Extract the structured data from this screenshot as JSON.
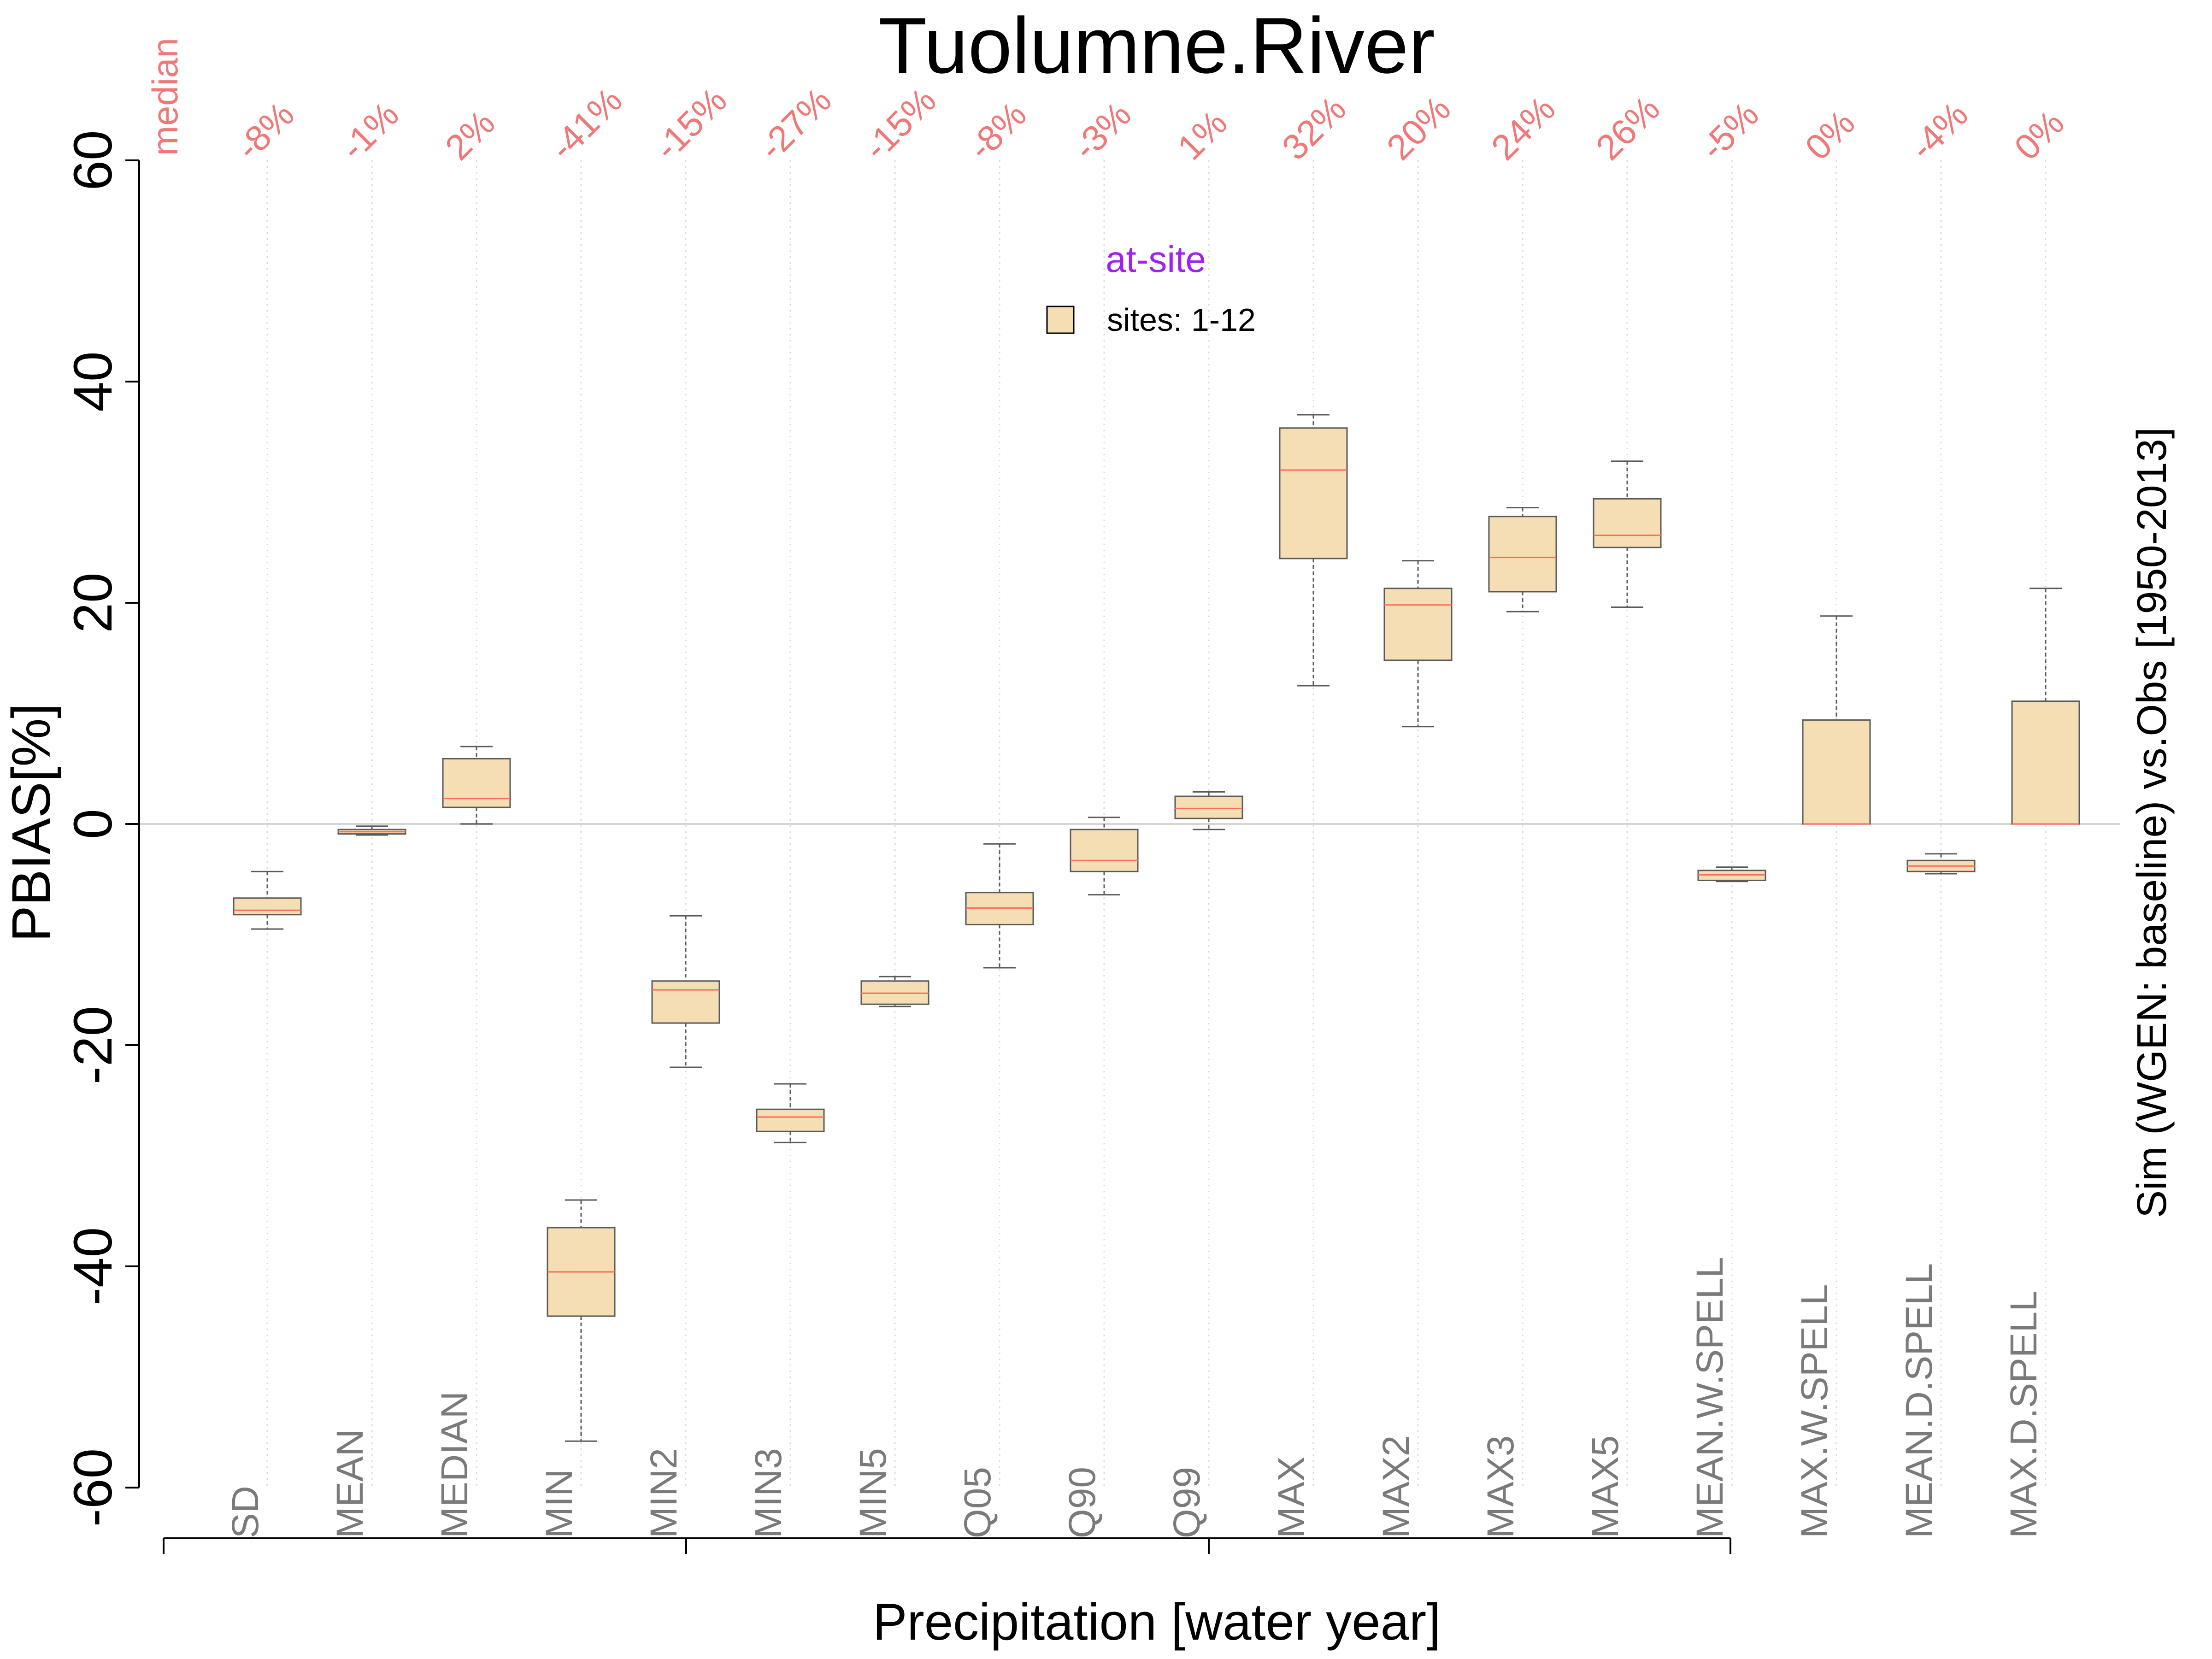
{
  "chart_data": {
    "type": "box",
    "title": "Tuolumne.River",
    "xlabel": "Precipitation [water year]",
    "ylabel": "PBIAS[%]",
    "right_label": "Sim (WGEN: baseline) vs.Obs [1950-2013]",
    "median_label": "median",
    "ylim": [
      -60,
      60
    ],
    "yticks": [
      "-60",
      "-40",
      "-20",
      "0",
      "20",
      "40",
      "60"
    ],
    "grid": "vertical dotted",
    "legend": {
      "title": "at-site",
      "entries": [
        "sites: 1-12"
      ],
      "placement": "top-center"
    },
    "categories": [
      "SD",
      "MEAN",
      "MEDIAN",
      "MIN",
      "MIN2",
      "MIN3",
      "MIN5",
      "Q05",
      "Q90",
      "Q99",
      "MAX",
      "MAX2",
      "MAX3",
      "MAX5",
      "MEAN.W.SPELL",
      "MAX.W.SPELL",
      "MEAN.D.SPELL",
      "MAX.D.SPELL"
    ],
    "median_labels": [
      "-8%",
      "-1%",
      "2%",
      "-41%",
      "-15%",
      "-27%",
      "-15%",
      "-8%",
      "-3%",
      "1%",
      "32%",
      "20%",
      "24%",
      "26%",
      "-5%",
      "0%",
      "-4%",
      "0%"
    ],
    "boxes": [
      {
        "low": -9.5,
        "q1": -8.2,
        "median": -7.8,
        "q3": -6.7,
        "high": -4.3
      },
      {
        "low": -1.0,
        "q1": -0.9,
        "median": -0.7,
        "q3": -0.5,
        "high": -0.2
      },
      {
        "low": 0.0,
        "q1": 1.5,
        "median": 2.3,
        "q3": 5.9,
        "high": 7.0
      },
      {
        "low": -55.8,
        "q1": -44.5,
        "median": -40.5,
        "q3": -36.5,
        "high": -34.0
      },
      {
        "low": -22.0,
        "q1": -18.0,
        "median": -15.0,
        "q3": -14.2,
        "high": -8.3
      },
      {
        "low": -28.8,
        "q1": -27.8,
        "median": -26.5,
        "q3": -25.8,
        "high": -23.5
      },
      {
        "low": -16.5,
        "q1": -16.3,
        "median": -15.3,
        "q3": -14.2,
        "high": -13.8
      },
      {
        "low": -13.0,
        "q1": -9.1,
        "median": -7.6,
        "q3": -6.2,
        "high": -1.8
      },
      {
        "low": -6.4,
        "q1": -4.3,
        "median": -3.3,
        "q3": -0.5,
        "high": 0.6
      },
      {
        "low": -0.5,
        "q1": 0.5,
        "median": 1.4,
        "q3": 2.5,
        "high": 2.9
      },
      {
        "low": 12.5,
        "q1": 24.0,
        "median": 32.0,
        "q3": 35.8,
        "high": 37.0
      },
      {
        "low": 8.8,
        "q1": 14.8,
        "median": 19.8,
        "q3": 21.3,
        "high": 23.8
      },
      {
        "low": 19.2,
        "q1": 21.0,
        "median": 24.1,
        "q3": 27.8,
        "high": 28.6
      },
      {
        "low": 19.6,
        "q1": 25.0,
        "median": 26.1,
        "q3": 29.4,
        "high": 32.8
      },
      {
        "low": -5.2,
        "q1": -5.1,
        "median": -4.6,
        "q3": -4.2,
        "high": -3.9
      },
      {
        "low": 0.0,
        "q1": 0.0,
        "median": 0.0,
        "q3": 9.4,
        "high": 18.8
      },
      {
        "low": -4.5,
        "q1": -4.3,
        "median": -3.8,
        "q3": -3.3,
        "high": -2.7
      },
      {
        "low": 0.0,
        "q1": 0.0,
        "median": 0.0,
        "q3": 11.1,
        "high": 21.3
      }
    ],
    "colors": {
      "box_fill": "#f5deb3",
      "box_stroke": "#5a5a5a",
      "median_line": "#ff6a5a",
      "median_text": "#f07878",
      "legend_title": "#a020f0",
      "category_text": "#7a7a7a",
      "grid": "#d8d8d8",
      "zero_line": "#d6d6d6"
    }
  }
}
